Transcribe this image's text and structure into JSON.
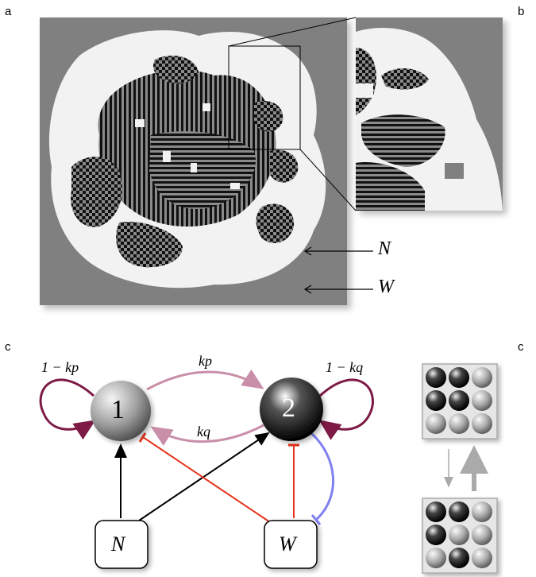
{
  "panels": {
    "a": {
      "letter": "a"
    },
    "b": {
      "letter": "b"
    },
    "c_left": {
      "letter": "c"
    },
    "c_right": {
      "letter": "c"
    }
  },
  "panel_a": {
    "arrow_labels": {
      "n": "N",
      "w": "W"
    }
  },
  "network": {
    "nodes": {
      "node1": "1",
      "node2": "2",
      "N": "N",
      "W": "W"
    },
    "edge_labels": {
      "self1": "1 − kp",
      "self2": "1 − kq",
      "forward": "kp",
      "backward": "kq"
    }
  },
  "colors": {
    "grid_background": "#808080",
    "white_zone": "#f2f2f2",
    "dark_cells": "#111111",
    "self_loop": "#7d1a45",
    "transition": "#c98ea8",
    "activation": "#000000",
    "inhibition_red": "#e8341c",
    "inhibition_blue": "#8080f0"
  }
}
